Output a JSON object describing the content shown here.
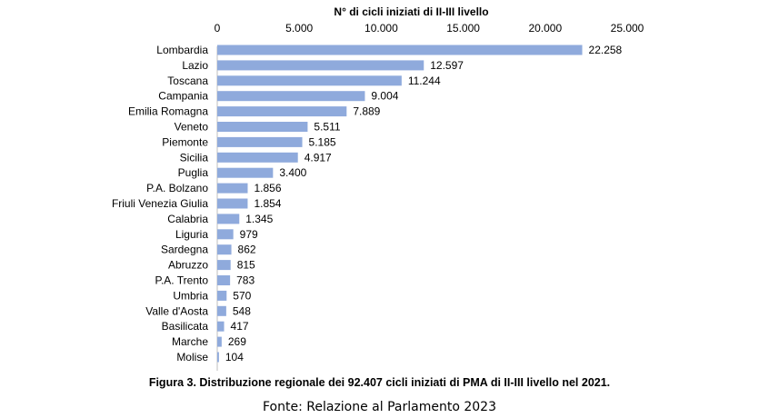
{
  "chart_data": {
    "type": "bar",
    "orientation": "horizontal",
    "title": "N° di cicli iniziati di II-III livello",
    "xlim": [
      0,
      25000
    ],
    "xticks": [
      "0",
      "5.000",
      "10.000",
      "15.000",
      "20.000",
      "25.000"
    ],
    "xtick_values": [
      0,
      5000,
      10000,
      15000,
      20000,
      25000
    ],
    "axis_position": "top",
    "grid": false,
    "bar_color": "#8faadc",
    "categories": [
      "Lombardia",
      "Lazio",
      "Toscana",
      "Campania",
      "Emilia Romagna",
      "Veneto",
      "Piemonte",
      "Sicilia",
      "Puglia",
      "P.A. Bolzano",
      "Friuli Venezia Giulia",
      "Calabria",
      "Liguria",
      "Sardegna",
      "Abruzzo",
      "P.A. Trento",
      "Umbria",
      "Valle d'Aosta",
      "Basilicata",
      "Marche",
      "Molise"
    ],
    "values": [
      22258,
      12597,
      11244,
      9004,
      7889,
      5511,
      5185,
      4917,
      3400,
      1856,
      1854,
      1345,
      979,
      862,
      815,
      783,
      570,
      548,
      417,
      269,
      104
    ],
    "data_labels": [
      "22.258",
      "12.597",
      "11.244",
      "9.004",
      "7.889",
      "5.511",
      "5.185",
      "4.917",
      "3.400",
      "1.856",
      "1.854",
      "1.345",
      "979",
      "862",
      "815",
      "783",
      "570",
      "548",
      "417",
      "269",
      "104"
    ]
  },
  "caption": "Figura 3. Distribuzione regionale dei 92.407 cicli iniziati di PMA di II-III livello nel 2021.",
  "source": "Fonte: Relazione al Parlamento 2023"
}
